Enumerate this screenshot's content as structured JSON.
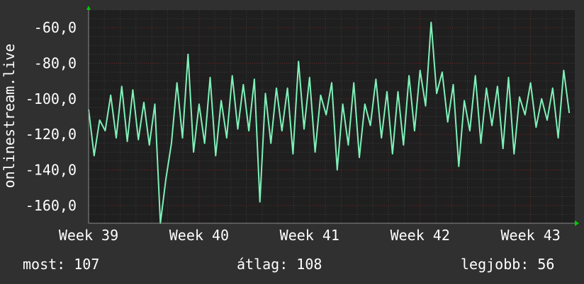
{
  "chart_data": {
    "type": "line",
    "ylabel": "onlinestream.live",
    "yticks": [
      -60,
      -80,
      -100,
      -120,
      -140,
      -160
    ],
    "ytick_labels": [
      "-60,0",
      "-80,0",
      "-100,0",
      "-120,0",
      "-140,0",
      "-160,0"
    ],
    "ylim": [
      -170,
      -50
    ],
    "xtick_labels": [
      "Week 39",
      "Week 40",
      "Week 41",
      "Week 42",
      "Week 43"
    ],
    "xlim_weeks": [
      39,
      43.4
    ],
    "grid": true,
    "colors": {
      "background": "#303030",
      "plot": "#1f1f1f",
      "line": "#7ff0b8",
      "grid": "#4a4a4a",
      "axis_arrow": "#00cc00"
    },
    "series": [
      {
        "x": [
          39,
          39.05,
          39.1,
          39.15,
          39.2,
          39.25,
          39.3,
          39.35,
          39.4,
          39.45,
          39.5,
          39.55,
          39.6,
          39.65,
          39.7,
          39.75,
          39.8,
          39.85,
          39.9,
          39.95,
          40,
          40.05,
          40.1,
          40.15,
          40.2,
          40.25,
          40.3,
          40.35,
          40.4,
          40.45,
          40.5,
          40.55,
          40.6,
          40.65,
          40.7,
          40.75,
          40.8,
          40.85,
          40.9,
          40.95,
          41,
          41.05,
          41.1,
          41.15,
          41.2,
          41.25,
          41.3,
          41.35,
          41.4,
          41.45,
          41.5,
          41.55,
          41.6,
          41.65,
          41.7,
          41.75,
          41.8,
          41.85,
          41.9,
          41.95,
          42,
          42.05,
          42.1,
          42.15,
          42.2,
          42.25,
          42.3,
          42.35,
          42.4,
          42.45,
          42.5,
          42.55,
          42.6,
          42.65,
          42.7,
          42.75,
          42.8,
          42.85,
          42.9,
          42.95,
          43,
          43.05,
          43.1,
          43.15,
          43.2,
          43.25,
          43.3,
          43.35
        ],
        "y": [
          -106,
          -132,
          -112,
          -118,
          -98,
          -122,
          -93,
          -124,
          -95,
          -123,
          -102,
          -126,
          -103,
          -170,
          -145,
          -125,
          -91,
          -122,
          -75,
          -130,
          -103,
          -125,
          -88,
          -132,
          -101,
          -122,
          -87,
          -117,
          -92,
          -118,
          -89,
          -158,
          -97,
          -125,
          -94,
          -118,
          -94,
          -131,
          -79,
          -117,
          -88,
          -130,
          -98,
          -109,
          -91,
          -140,
          -103,
          -126,
          -91,
          -133,
          -103,
          -115,
          -89,
          -122,
          -96,
          -131,
          -96,
          -126,
          -87,
          -118,
          -84,
          -104,
          -57,
          -97,
          -85,
          -113,
          -92,
          -138,
          -101,
          -118,
          -87,
          -125,
          -94,
          -115,
          -93,
          -128,
          -88,
          -131,
          -99,
          -109,
          -91,
          -116,
          -100,
          -112,
          -94,
          -122,
          -84,
          -108
        ]
      }
    ]
  },
  "stats": {
    "current": "most: 107",
    "average": "átlag: 108",
    "best": "legjobb: 56"
  }
}
